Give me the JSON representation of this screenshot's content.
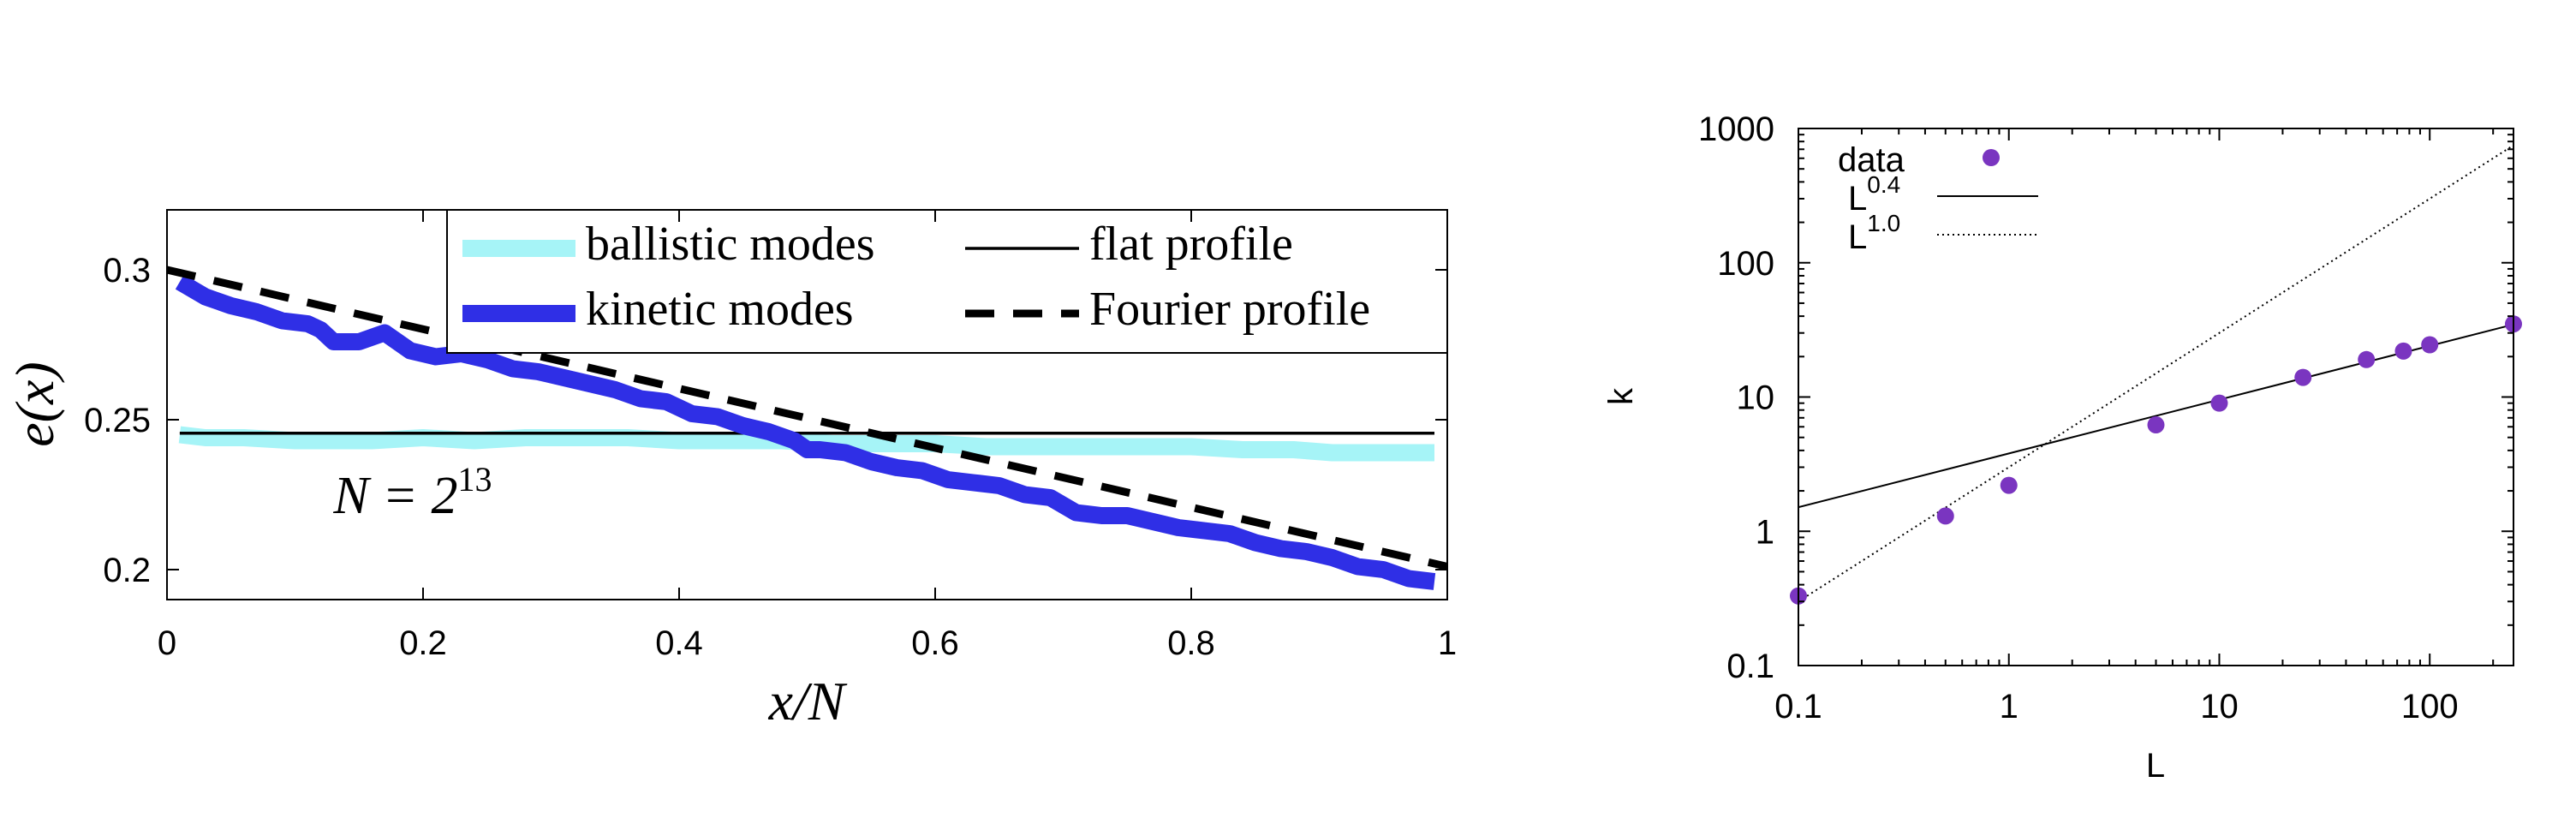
{
  "chart_data": [
    {
      "type": "line",
      "xlabel": "x/N",
      "ylabel": "e(x)",
      "xlim": [
        0,
        1
      ],
      "ylim": [
        0.19,
        0.32
      ],
      "x_ticks": [
        "0",
        "0.2",
        "0.4",
        "0.6",
        "0.8",
        "1"
      ],
      "y_ticks": [
        "0.2",
        "0.25",
        "0.3"
      ],
      "legend_position": "top",
      "annotation": {
        "lhs": "N = 2",
        "exponent": "13",
        "x": 0.13,
        "y": 0.224
      },
      "legend": [
        {
          "label": "ballistic modes",
          "color": "#a6f4f7",
          "style": "thick"
        },
        {
          "label": "kinetic modes",
          "color": "#2f2fe6",
          "style": "thick"
        },
        {
          "label": "flat profile",
          "color": "#000000",
          "style": "solid"
        },
        {
          "label": "Fourier profile",
          "color": "#000000",
          "style": "dashed"
        }
      ],
      "series": [
        {
          "name": "ballistic modes",
          "color": "#a6f4f7",
          "x": [
            0.01,
            0.03,
            0.06,
            0.1,
            0.13,
            0.16,
            0.2,
            0.24,
            0.28,
            0.32,
            0.36,
            0.4,
            0.44,
            0.48,
            0.52,
            0.56,
            0.6,
            0.64,
            0.68,
            0.72,
            0.76,
            0.8,
            0.84,
            0.88,
            0.91,
            0.94,
            0.97,
            0.99
          ],
          "y": [
            0.245,
            0.244,
            0.244,
            0.243,
            0.243,
            0.243,
            0.244,
            0.243,
            0.244,
            0.244,
            0.244,
            0.243,
            0.243,
            0.243,
            0.242,
            0.242,
            0.242,
            0.241,
            0.241,
            0.241,
            0.241,
            0.241,
            0.24,
            0.24,
            0.239,
            0.239,
            0.239,
            0.239
          ]
        },
        {
          "name": "kinetic modes",
          "color": "#2f2fe6",
          "x": [
            0.01,
            0.03,
            0.05,
            0.07,
            0.09,
            0.11,
            0.12,
            0.13,
            0.15,
            0.17,
            0.19,
            0.21,
            0.23,
            0.25,
            0.27,
            0.29,
            0.31,
            0.33,
            0.35,
            0.37,
            0.39,
            0.41,
            0.43,
            0.45,
            0.47,
            0.49,
            0.5,
            0.51,
            0.53,
            0.55,
            0.57,
            0.59,
            0.61,
            0.63,
            0.65,
            0.67,
            0.69,
            0.71,
            0.73,
            0.75,
            0.77,
            0.79,
            0.81,
            0.83,
            0.85,
            0.87,
            0.89,
            0.91,
            0.93,
            0.95,
            0.97,
            0.99
          ],
          "y": [
            0.296,
            0.291,
            0.288,
            0.286,
            0.283,
            0.282,
            0.28,
            0.276,
            0.276,
            0.279,
            0.273,
            0.271,
            0.272,
            0.27,
            0.267,
            0.266,
            0.264,
            0.262,
            0.26,
            0.257,
            0.256,
            0.252,
            0.251,
            0.248,
            0.246,
            0.243,
            0.24,
            0.24,
            0.239,
            0.236,
            0.234,
            0.233,
            0.23,
            0.229,
            0.228,
            0.225,
            0.224,
            0.219,
            0.218,
            0.218,
            0.216,
            0.214,
            0.213,
            0.212,
            0.209,
            0.207,
            0.206,
            0.204,
            0.201,
            0.2,
            0.197,
            0.196
          ]
        },
        {
          "name": "flat profile",
          "color": "#000000",
          "x": [
            0.01,
            0.99
          ],
          "y": [
            0.2455,
            0.2455
          ]
        },
        {
          "name": "Fourier profile",
          "color": "#000000",
          "x": [
            0.0,
            1.0
          ],
          "y": [
            0.3,
            0.201
          ]
        }
      ]
    },
    {
      "type": "scatter",
      "xlabel": "L",
      "ylabel": "k",
      "xscale": "log",
      "yscale": "log",
      "xlim": [
        0.1,
        250
      ],
      "ylim": [
        0.1,
        1000
      ],
      "x_ticks": [
        "0.1",
        "1",
        "10",
        "100"
      ],
      "y_ticks": [
        "0.1",
        "1",
        "10",
        "100",
        "1000"
      ],
      "legend_position": "top-left",
      "legend": [
        {
          "label": "data",
          "base": "data",
          "exponent": "",
          "style": "point",
          "color": "#7a35c0"
        },
        {
          "label": "L^0.4",
          "base": "L",
          "exponent": "0.4",
          "style": "solid",
          "color": "#000000"
        },
        {
          "label": "L^1.0",
          "base": "L",
          "exponent": "1.0",
          "style": "dotted",
          "color": "#000000"
        }
      ],
      "series": [
        {
          "name": "data",
          "color": "#7a35c0",
          "x": [
            0.1,
            0.5,
            1,
            5,
            10,
            25,
            50,
            75,
            100,
            250
          ],
          "y": [
            0.33,
            1.3,
            2.2,
            6.2,
            9.0,
            14,
            19,
            22,
            24.5,
            35
          ]
        },
        {
          "name": "L^0.4",
          "color": "#000000",
          "x": [
            0.1,
            250
          ],
          "y": [
            1.51,
            34.7
          ]
        },
        {
          "name": "L^1.0",
          "color": "#000000",
          "x": [
            0.1,
            250
          ],
          "y": [
            0.3,
            750
          ]
        }
      ]
    }
  ]
}
